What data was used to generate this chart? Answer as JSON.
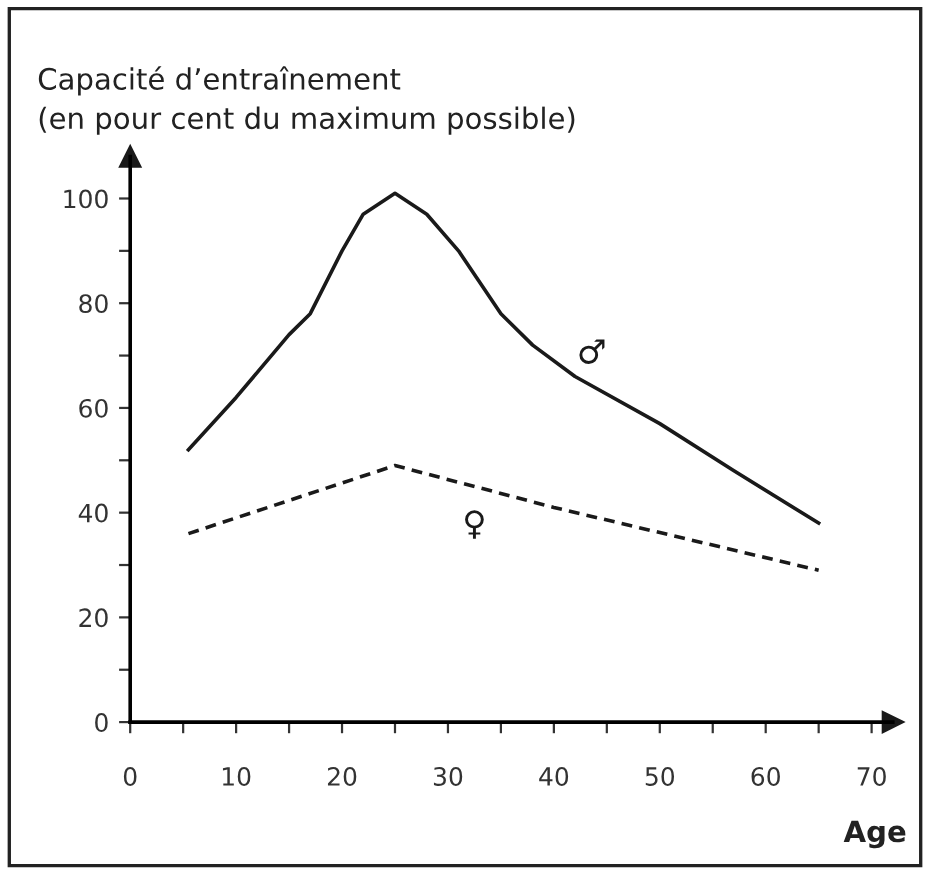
{
  "chart_data": {
    "type": "line",
    "ylabel": "Capacité d’entraînement\n(en pour cent du maximum possible)",
    "xlabel": "Age",
    "xlim": [
      0,
      72
    ],
    "ylim": [
      0,
      108
    ],
    "xticks": [
      0,
      {
        "value": 5,
        "label": null
      },
      10,
      {
        "value": 15,
        "label": null
      },
      20,
      {
        "value": 25,
        "label": null
      },
      30,
      {
        "value": 35,
        "label": null
      },
      40,
      {
        "value": 45,
        "label": null
      },
      50,
      {
        "value": 55,
        "label": null
      },
      60,
      {
        "value": 65,
        "label": null
      },
      70
    ],
    "yticks": [
      0,
      {
        "value": 10,
        "label": null
      },
      20,
      {
        "value": 30,
        "label": null
      },
      40,
      {
        "value": 50,
        "label": null
      },
      60,
      {
        "value": 70,
        "label": null
      },
      80,
      {
        "value": 90,
        "label": null
      },
      100
    ],
    "grid": false,
    "legend": false,
    "marker": "none",
    "series": [
      {
        "name": "♂",
        "color": "#1a1a1a",
        "line_style": "solid",
        "x": [
          5.5,
          10,
          15,
          17,
          20,
          22,
          25,
          28,
          31,
          35,
          38,
          42,
          50,
          57,
          65
        ],
        "values": [
          52,
          62,
          74,
          78,
          90,
          97,
          101,
          97,
          90,
          78,
          72,
          66,
          57,
          48,
          38
        ]
      },
      {
        "name": "♀",
        "color": "#1a1a1a",
        "line_style": "dashed",
        "x": [
          5.5,
          25,
          40,
          65
        ],
        "values": [
          36,
          49,
          41,
          29
        ]
      }
    ]
  }
}
